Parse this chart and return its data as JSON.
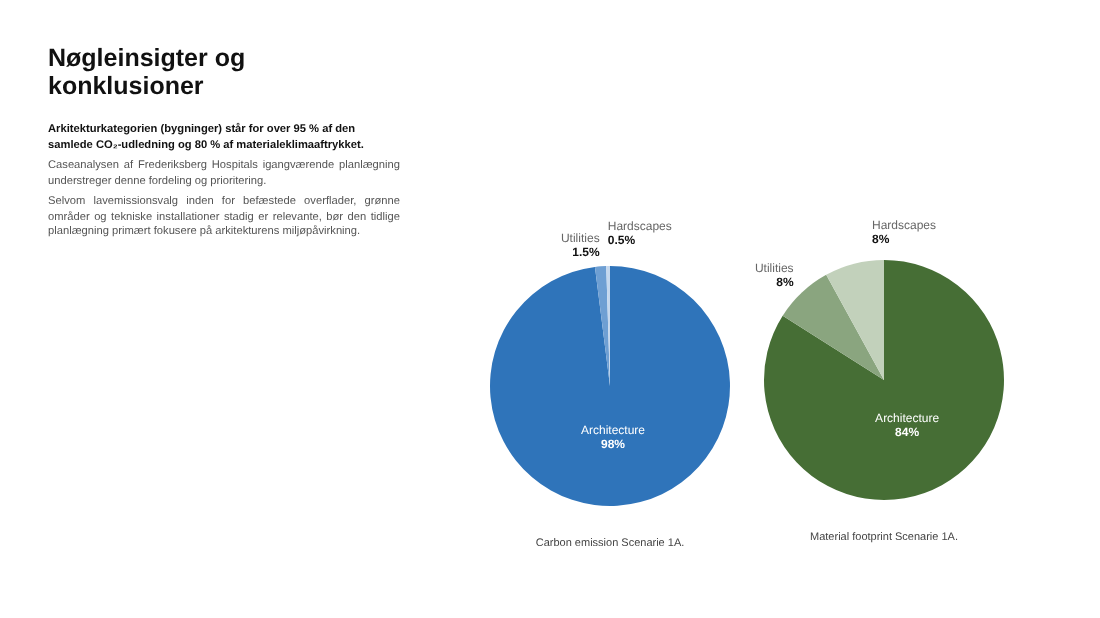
{
  "chart_data": [
    {
      "type": "other",
      "title": "Nøgleinsigter og konklusioner",
      "subtitle": "Arkitekturkategorien (bygninger) står for over 95 % af den samlede CO₂-udledning og 80 % af materialeklimaaftrykket.",
      "annotations": [
        "Caseanalysen af Frederiksberg Hospitals igangværende planlægning understreger denne fordeling og prioritering.",
        "Selvom lavemissionsvalg inden for befæstede overflader, grønne områder og tekniske installationer stadig er relevante, bør den tidlige planlægning primært fokusere på arkitekturens miljøpåvirkning."
      ]
    },
    {
      "type": "pie",
      "categories": [
        "Architecture",
        "Utilities",
        "Hardscapes"
      ],
      "values": [
        98,
        1.5,
        0.5
      ],
      "value_labels": [
        "98%",
        "1.5%",
        "0.5%"
      ],
      "colors": [
        "#2f74ba",
        "#6e9fd3",
        "#c5d8ee"
      ],
      "annotations": [
        "Carbon emission Scenarie 1A."
      ]
    },
    {
      "type": "pie",
      "categories": [
        "Architecture",
        "Utilities",
        "Hardscapes"
      ],
      "values": [
        84,
        8,
        8
      ],
      "value_labels": [
        "84%",
        "8%",
        "8%"
      ],
      "colors": [
        "#466e35",
        "#8aa57f",
        "#c2d1bb"
      ],
      "annotations": [
        "Material footprint Scenarie 1A."
      ]
    }
  ]
}
